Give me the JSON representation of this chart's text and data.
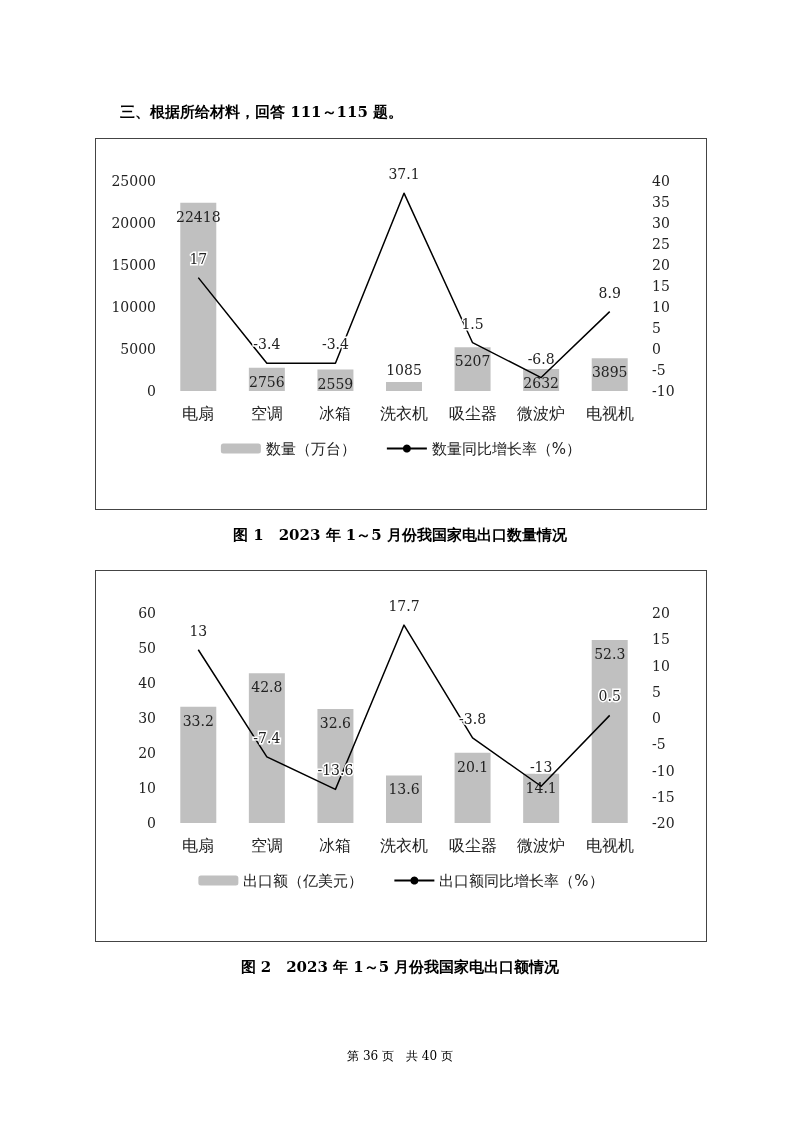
{
  "chart_data": [
    {
      "type": "bar",
      "title": "图 1　2023 年 1～5 月份我国家电出口数量情况",
      "annotations": [
        "三、根据所给材料，回答 111～115 题。"
      ],
      "categories": [
        "电扇",
        "空调",
        "冰箱",
        "洗衣机",
        "吸尘器",
        "微波炉",
        "电视机"
      ],
      "series": [
        {
          "name": "数量（万台）",
          "color": "#c0c0c0",
          "values": [
            22418,
            2756,
            2559,
            1085,
            5207,
            2632,
            3895
          ]
        },
        {
          "name": "数量同比增长率（%）",
          "type": "line",
          "axis": "y2",
          "color": "#000000",
          "values": [
            17,
            -3.4,
            -3.4,
            37.1,
            1.5,
            -6.8,
            8.9
          ]
        }
      ],
      "ylim": [
        0,
        25000
      ],
      "yticks": [
        0,
        5000,
        10000,
        15000,
        20000,
        25000
      ],
      "y2lim": [
        -10,
        40
      ],
      "y2ticks": [
        -10,
        -5,
        0,
        5,
        10,
        15,
        20,
        25,
        30,
        35,
        40
      ],
      "data_labels": true,
      "legend": "bottom",
      "grid": false,
      "marker": "none"
    },
    {
      "type": "bar",
      "title": "图 2　2023 年 1～5 月份我国家电出口额情况",
      "annotations": [
        "第 36 页　共 40 页"
      ],
      "categories": [
        "电扇",
        "空调",
        "冰箱",
        "洗衣机",
        "吸尘器",
        "微波炉",
        "电视机"
      ],
      "series": [
        {
          "name": "出口额（亿美元）",
          "color": "#c0c0c0",
          "values": [
            33.2,
            42.8,
            32.6,
            13.6,
            20.1,
            14.1,
            52.3
          ]
        },
        {
          "name": "出口额同比增长率（%）",
          "type": "line",
          "axis": "y2",
          "color": "#000000",
          "values": [
            13,
            -7.4,
            -13.6,
            17.7,
            -3.8,
            -13,
            0.5
          ]
        }
      ],
      "ylim": [
        0,
        60
      ],
      "yticks": [
        0,
        10,
        20,
        30,
        40,
        50,
        60
      ],
      "y2lim": [
        -20,
        20
      ],
      "y2ticks": [
        -20,
        -15,
        -10,
        -5,
        0,
        5,
        10,
        15,
        20
      ],
      "data_labels": true,
      "legend": "bottom",
      "grid": false,
      "marker": "none"
    }
  ]
}
